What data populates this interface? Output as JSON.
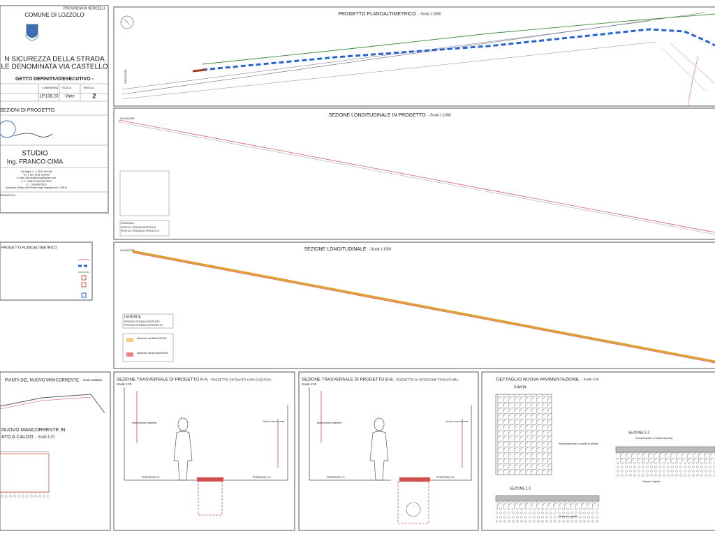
{
  "title_block": {
    "province": "PROVINCIA DI VERCELLI",
    "municipality": "COMUNE DI LOZZOLO",
    "project_line_1": "N SICUREZZA DELLA STRADA",
    "project_line_2": "LE DENOMINATA VIA CASTELLO",
    "phase": "GETTO DEFINITIVO/ESECUTIVO -",
    "commessa_label": "COMMESSA",
    "commessa": "LP.138.23",
    "scala_label": "SCALA",
    "scala": "Varie",
    "tavola_label": "TAVOLA",
    "tavola": "2",
    "sheet_title": "SEZIONI DI PROGETTO",
    "studio": "STUDIO",
    "engineer": "Ing. FRANCO CIMA",
    "address": [
      "Via Nigra, 6 - 13100 Vercelli",
      "Tel. e fax: 0161 250063",
      "E-mail: info.studiocima@gmail.com",
      "C.F.: CMIFNC66S13L750G",
      "P. I.: 01849570021",
      "Iscrizione all'albo dell'Ordine degli Ingegneri al n. 891/A"
    ],
    "approvals": "ROVAZIONI"
  },
  "panels": {
    "plan": {
      "title": "PROGETTO PLANOALTIMETRICO",
      "scale": "- Scala 1:1000",
      "street": "VIA MAZZINI"
    },
    "profile_project": {
      "title": "SEZIONE LONGITUDINALE IN PROGETTO",
      "scale": "- Scala 1:1000",
      "street": "VIA MAZZINI"
    },
    "profile": {
      "title": "SEZIONE LONGITUDINALE",
      "scale": "- Scala 1:1000",
      "street": "VIA MAZZINI"
    },
    "legend": {
      "title": "LEGENDA",
      "items": [
        "PROFILO STRADA ESISTENTE",
        "PROFILO STRADA IN PROGETTO"
      ]
    },
    "materials": [
      "Materiale da RIMUOVERE",
      "Materiale da AGGIUNGERE"
    ],
    "plan_legend": {
      "title": "PROGETTO PLANOALTIMETRICO"
    },
    "handrail_plan": {
      "title": "PIANTA DEL NUOVO MANCORRENTE",
      "scale": "- Scale adattate"
    },
    "handrail_detail": {
      "title_1": "NUOVO MANCORRENTE IN",
      "title_2": "ATO A CALDO",
      "scale": "- Scala 1:20"
    },
    "section_aa": {
      "title": "SEZIONE TRASVERSALE DI PROGETTO A-A,",
      "subtitle": "POZZETTO SIFONATO CON CADITOIA",
      "scale": "Scala 1:20",
      "left_note": "Mancorrente esistente",
      "right_note": "Nuovo mancorrente",
      "slope_left": "PENDENZA 1%",
      "slope_right": "PENDENZA 1%"
    },
    "section_bb": {
      "title": "SEZIONE TRASVERSALE DI PROGETTO B-B,",
      "subtitle": "POZZETTO DI ISPEZIONE FOGNATURA",
      "scale": "Scala 1:20",
      "left_note": "Mancorrente esistente",
      "right_note": "Nuovo mancorrente",
      "slope_left": "PENDENZA 1%",
      "slope_right": "PENDENZA 1%"
    },
    "paving": {
      "title": "DETTAGLIO NUOVA PAVIMENTAZIONE",
      "scale": "- Scala 1:20",
      "plan": "PIANTA",
      "section_1": "SEZIONE 1-1",
      "section_2": "SEZIONE 2-2",
      "note_1": "Pavimentazione in cubetti di porfido",
      "note_2": "Vespaio in ghiaia"
    }
  }
}
